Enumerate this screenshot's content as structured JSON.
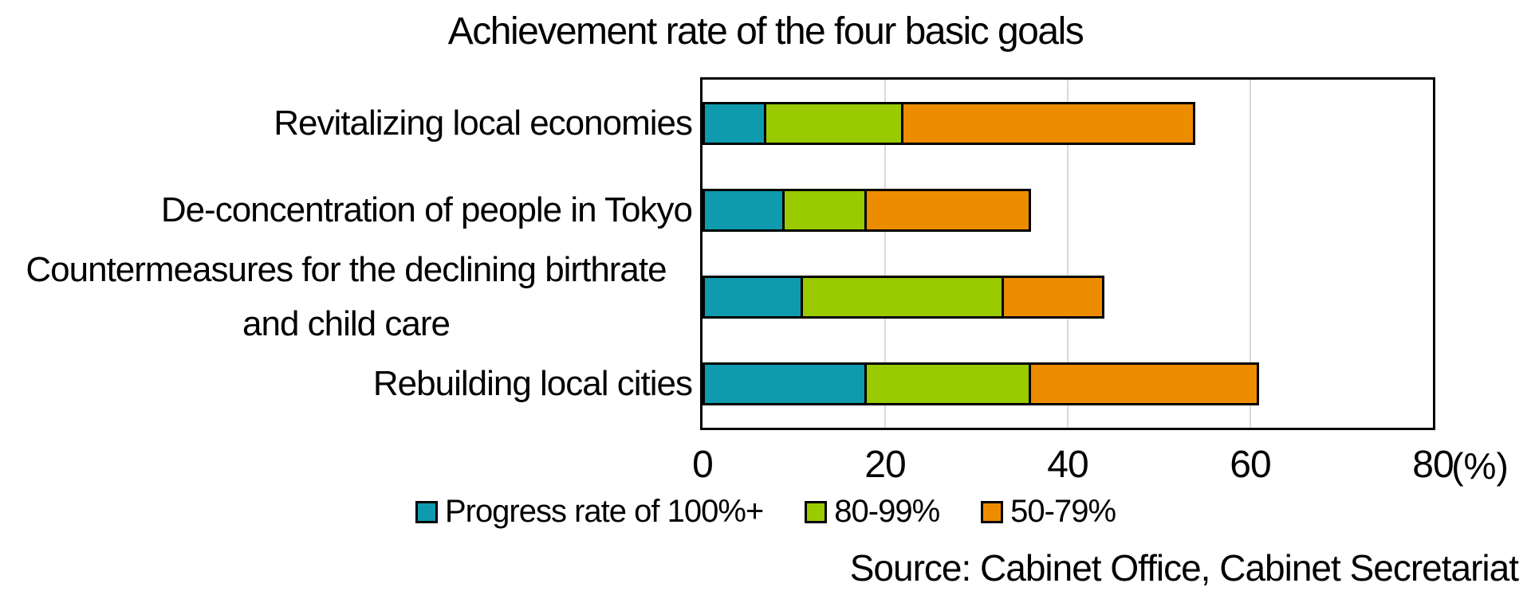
{
  "chart_data": {
    "type": "bar",
    "orientation": "horizontal",
    "stacked": true,
    "title": "Achievement rate of the four basic goals",
    "categories": [
      "Revitalizing local economies",
      "De-concentration of people in Tokyo",
      "Countermeasures for the declining birthrate and child care",
      "Rebuilding local cities"
    ],
    "series": [
      {
        "name": "Progress rate of 100%+",
        "color": "#0f9aad",
        "values": [
          7,
          9,
          11,
          18
        ]
      },
      {
        "name": "80-99%",
        "color": "#9aca00",
        "values": [
          15,
          9,
          22,
          18
        ]
      },
      {
        "name": "50-79%",
        "color": "#ee8c00",
        "values": [
          32,
          18,
          11,
          25
        ]
      }
    ],
    "totals": [
      54,
      36,
      44,
      61
    ],
    "xlim": [
      0,
      80
    ],
    "x_ticks": [
      "0",
      "20",
      "40",
      "60",
      "80"
    ],
    "x_unit": "(%)",
    "grid": "vertical light-gray lines at 20, 40, 60",
    "gridline_color": "#d9d9d9",
    "bar_border_color": "#000000",
    "legend_position": "bottom",
    "source": "Source: Cabinet Office, Cabinet Secretariat"
  }
}
